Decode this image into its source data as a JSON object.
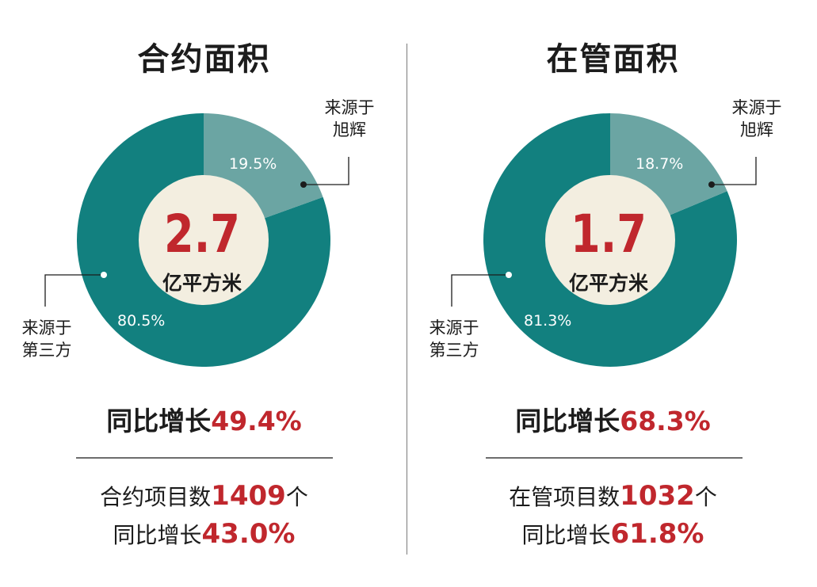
{
  "colors": {
    "main": "#12807f",
    "minor": "#6ba5a3",
    "center": "#f3eee0",
    "accent": "#c0272d"
  },
  "panels": [
    {
      "title": "合约面积",
      "center_value": "2.7",
      "center_unit": "亿平方米",
      "minor_label": "来源于旭辉",
      "minor_label_lines": [
        "来源于",
        "旭辉"
      ],
      "minor_pct_text": "19.5%",
      "major_label": "来源于第三方",
      "major_label_lines": [
        "来源于",
        "第三方"
      ],
      "major_pct_text": "80.5%",
      "growth_label": "同比增长",
      "growth_value": "49.4%",
      "projects_label": "合约项目数",
      "projects_value": "1409",
      "projects_unit": "个",
      "projects_growth_label": "同比增长",
      "projects_growth_value": "43.0%"
    },
    {
      "title": "在管面积",
      "center_value": "1.7",
      "center_unit": "亿平方米",
      "minor_label": "来源于旭辉",
      "minor_label_lines": [
        "来源于",
        "旭辉"
      ],
      "minor_pct_text": "18.7%",
      "major_label": "来源于第三方",
      "major_label_lines": [
        "来源于",
        "第三方"
      ],
      "major_pct_text": "81.3%",
      "growth_label": "同比增长",
      "growth_value": "68.3%",
      "projects_label": "在管项目数",
      "projects_value": "1032",
      "projects_unit": "个",
      "projects_growth_label": "同比增长",
      "projects_growth_value": "61.8%"
    }
  ],
  "chart_data": [
    {
      "type": "pie",
      "title": "合约面积",
      "categories": [
        "来源于旭辉",
        "来源于第三方"
      ],
      "values": [
        19.5,
        80.5
      ],
      "total": "2.7亿平方米"
    },
    {
      "type": "pie",
      "title": "在管面积",
      "categories": [
        "来源于旭辉",
        "来源于第三方"
      ],
      "values": [
        18.7,
        81.3
      ],
      "total": "1.7亿平方米"
    }
  ]
}
